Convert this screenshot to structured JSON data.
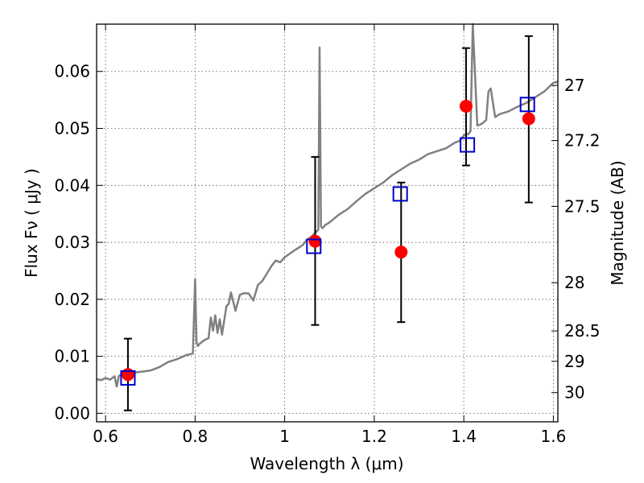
{
  "chart_data": {
    "type": "scatter",
    "xlabel": "Wavelength  λ (μm)",
    "ylabel_left": "Flux  Fν  ( μJy )",
    "ylabel_right": "Magnitude (AB)",
    "xlim": [
      0.58,
      1.61
    ],
    "ylim": [
      -0.0015,
      0.0683
    ],
    "grid": true,
    "x_ticks": [
      0.6,
      0.8,
      1.0,
      1.2,
      1.4,
      1.6
    ],
    "x_tick_labels": [
      "0.6",
      "0.8",
      "1",
      "1.2",
      "1.4",
      "1.6"
    ],
    "y_ticks": [
      0.0,
      0.01,
      0.02,
      0.03,
      0.04,
      0.05,
      0.06
    ],
    "y_tick_labels": [
      "0.00",
      "0.01",
      "0.02",
      "0.03",
      "0.04",
      "0.05",
      "0.06"
    ],
    "right_ticks": [
      27,
      27.2,
      27.5,
      28,
      28.5,
      29,
      30
    ],
    "right_tick_labels": [
      "27",
      "27.2",
      "27.5",
      "28",
      "28.5",
      "29",
      "30"
    ],
    "colors": {
      "model_line": "#808080",
      "observed": "#ff0000",
      "model_photometry": "#0000cc",
      "error_bars": "#000000",
      "grid": "#555555"
    },
    "series": [
      {
        "type": "line",
        "x": [
          0.58,
          0.59,
          0.6,
          0.61,
          0.62,
          0.625,
          0.63,
          0.64,
          0.65,
          0.66,
          0.67,
          0.68,
          0.7,
          0.72,
          0.74,
          0.76,
          0.78,
          0.79,
          0.795,
          0.8,
          0.803,
          0.806,
          0.81,
          0.82,
          0.83,
          0.835,
          0.84,
          0.845,
          0.85,
          0.855,
          0.86,
          0.87,
          0.875,
          0.88,
          0.89,
          0.9,
          0.91,
          0.92,
          0.93,
          0.94,
          0.95,
          0.96,
          0.97,
          0.98,
          0.99,
          1.0,
          1.02,
          1.04,
          1.05,
          1.06,
          1.07,
          1.075,
          1.078,
          1.081,
          1.085,
          1.09,
          1.1,
          1.12,
          1.14,
          1.16,
          1.18,
          1.2,
          1.22,
          1.24,
          1.26,
          1.28,
          1.3,
          1.32,
          1.34,
          1.36,
          1.38,
          1.39,
          1.395,
          1.4,
          1.41,
          1.415,
          1.42,
          1.43,
          1.44,
          1.45,
          1.455,
          1.46,
          1.47,
          1.48,
          1.5,
          1.52,
          1.54,
          1.56,
          1.58,
          1.6,
          1.61
        ],
        "y": [
          0.006,
          0.0058,
          0.0062,
          0.0059,
          0.0065,
          0.0047,
          0.0066,
          0.0068,
          0.0069,
          0.0071,
          0.0072,
          0.0073,
          0.0075,
          0.0081,
          0.009,
          0.0095,
          0.0102,
          0.0104,
          0.0105,
          0.0235,
          0.0125,
          0.0118,
          0.0122,
          0.0128,
          0.0132,
          0.0168,
          0.0145,
          0.0172,
          0.0141,
          0.0165,
          0.0138,
          0.0188,
          0.0192,
          0.0212,
          0.018,
          0.0208,
          0.0211,
          0.021,
          0.0198,
          0.0225,
          0.0232,
          0.0245,
          0.0258,
          0.0268,
          0.0265,
          0.0274,
          0.0285,
          0.0295,
          0.0305,
          0.031,
          0.0318,
          0.0322,
          0.0642,
          0.0328,
          0.0325,
          0.033,
          0.0335,
          0.0348,
          0.0358,
          0.0372,
          0.0385,
          0.0395,
          0.0405,
          0.0418,
          0.0428,
          0.0438,
          0.0445,
          0.0455,
          0.046,
          0.0465,
          0.0475,
          0.0478,
          0.0482,
          0.0488,
          0.049,
          0.0495,
          0.0683,
          0.0505,
          0.0508,
          0.0515,
          0.0565,
          0.057,
          0.052,
          0.0525,
          0.053,
          0.0538,
          0.0545,
          0.0555,
          0.0565,
          0.058,
          0.0582
        ]
      },
      {
        "type": "scatter",
        "marker": "red filled circle",
        "x": [
          0.65,
          1.068,
          1.26,
          1.405,
          1.545
        ],
        "y": [
          0.0068,
          0.0302,
          0.0283,
          0.0539,
          0.0517
        ],
        "yerr_low": [
          0.0005,
          0.0155,
          0.016,
          0.0435,
          0.037
        ],
        "yerr_high": [
          0.0131,
          0.045,
          0.0405,
          0.0641,
          0.0662
        ]
      },
      {
        "type": "scatter",
        "marker": "blue open square",
        "x": [
          0.65,
          1.065,
          1.258,
          1.408,
          1.542
        ],
        "y": [
          0.0062,
          0.0293,
          0.0385,
          0.0471,
          0.0542
        ]
      }
    ]
  }
}
